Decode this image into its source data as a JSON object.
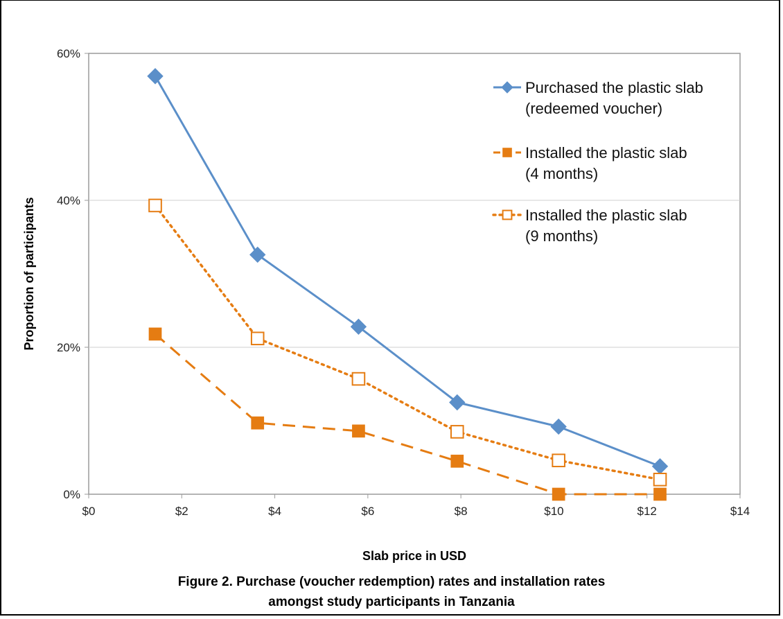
{
  "chart_data": {
    "type": "line",
    "xlabel": "Slab price in USD",
    "ylabel": "Proportion of participants",
    "xlim": [
      0,
      14
    ],
    "ylim": [
      0,
      60
    ],
    "xticks": [
      "$0",
      "$2",
      "$4",
      "$6",
      "$8",
      "$10",
      "$12",
      "$14"
    ],
    "yticks": [
      "0%",
      "20%",
      "40%",
      "60%"
    ],
    "grid": "horizontal",
    "legend_position": "top-right",
    "x": [
      1.43,
      3.63,
      5.8,
      7.92,
      10.1,
      12.28
    ],
    "series": [
      {
        "name_lines": [
          "Purchased the plastic slab",
          "(redeemed voucher)"
        ],
        "values": [
          56.9,
          32.6,
          22.8,
          12.5,
          9.2,
          3.8
        ],
        "color": "#5b8fc9",
        "line_style": "solid",
        "marker": "diamond"
      },
      {
        "name_lines": [
          "Installed the plastic slab",
          "(4 months)"
        ],
        "values": [
          21.8,
          9.7,
          8.6,
          4.5,
          0.0,
          0.0
        ],
        "color": "#e57c12",
        "line_style": "dashed",
        "marker": "filled-square"
      },
      {
        "name_lines": [
          "Installed the plastic slab",
          "(9 months)"
        ],
        "values": [
          39.3,
          21.2,
          15.7,
          8.5,
          4.6,
          2.0
        ],
        "color": "#e57c12",
        "line_style": "dotted",
        "marker": "open-square"
      }
    ]
  },
  "caption": {
    "line1": "Figure 2. Purchase (voucher redemption) rates and installation rates",
    "line2": "amongst study participants in Tanzania"
  }
}
